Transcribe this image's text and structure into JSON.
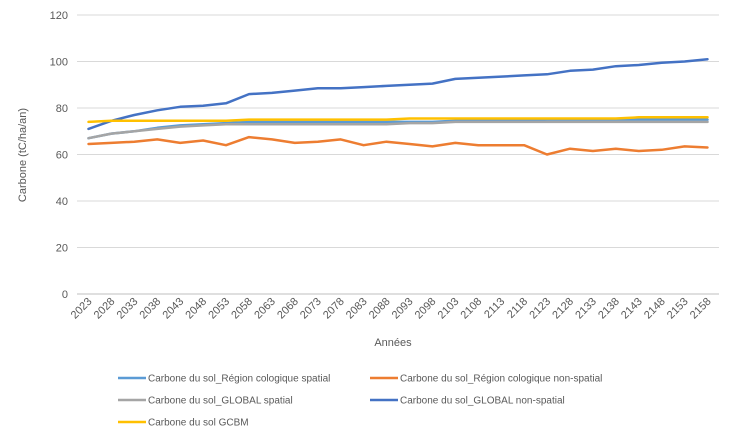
{
  "chart_data": {
    "type": "line",
    "title": "",
    "xlabel": "Années",
    "ylabel": "Carbone (tC/ha/an)",
    "ylim": [
      0,
      120
    ],
    "yticks": [
      0,
      20,
      40,
      60,
      80,
      100,
      120
    ],
    "grid": true,
    "legend_position": "bottom",
    "categories": [
      "2023",
      "2028",
      "2033",
      "2038",
      "2043",
      "2048",
      "2053",
      "2058",
      "2063",
      "2068",
      "2073",
      "2078",
      "2083",
      "2088",
      "2093",
      "2098",
      "2103",
      "2108",
      "2113",
      "2118",
      "2123",
      "2128",
      "2133",
      "2138",
      "2143",
      "2148",
      "2153",
      "2158"
    ],
    "series": [
      {
        "name": "Carbone du sol_Région cologique spatial",
        "color": "#5B9BD5",
        "values": [
          67,
          69,
          70,
          71.5,
          72.5,
          73,
          73.5,
          74,
          74,
          74,
          74,
          74,
          74,
          74,
          74,
          74,
          74.5,
          74.5,
          74.5,
          74.5,
          75,
          75,
          75,
          75,
          75,
          75,
          75,
          75
        ]
      },
      {
        "name": "Carbone du sol_Région cologique non-spatial",
        "color": "#ED7D31",
        "values": [
          64.5,
          65,
          65.5,
          66.5,
          65,
          66,
          64,
          67.5,
          66.5,
          65,
          65.5,
          66.5,
          64,
          65.5,
          64.5,
          63.5,
          65,
          64,
          64,
          64,
          60,
          62.5,
          61.5,
          62.5,
          61.5,
          62,
          63.5,
          63
        ]
      },
      {
        "name": "Carbone du sol_GLOBAL spatial",
        "color": "#A5A5A5",
        "values": [
          67,
          69,
          70,
          71,
          72,
          72.5,
          73,
          73,
          73,
          73,
          73,
          73,
          73,
          73,
          73.5,
          73.5,
          74,
          74,
          74,
          74,
          74,
          74,
          74,
          74,
          74,
          74,
          74,
          74
        ]
      },
      {
        "name": "Carbone du sol_GLOBAL non-spatial",
        "color": "#4472C4",
        "values": [
          71,
          74.5,
          77,
          79,
          80.5,
          81,
          82,
          86,
          86.5,
          87.5,
          88.5,
          88.5,
          89,
          89.5,
          90,
          90.5,
          92.5,
          93,
          93.5,
          94,
          94.5,
          96,
          96.5,
          98,
          98.5,
          99.5,
          100,
          101
        ]
      },
      {
        "name": "Carbone du sol GCBM",
        "color": "#FFC000",
        "values": [
          74,
          74.5,
          74.5,
          74.5,
          74.5,
          74.5,
          74.5,
          75,
          75,
          75,
          75,
          75,
          75,
          75,
          75.5,
          75.5,
          75.5,
          75.5,
          75.5,
          75.5,
          75.5,
          75.5,
          75.5,
          75.5,
          76,
          76,
          76,
          76
        ]
      }
    ]
  }
}
